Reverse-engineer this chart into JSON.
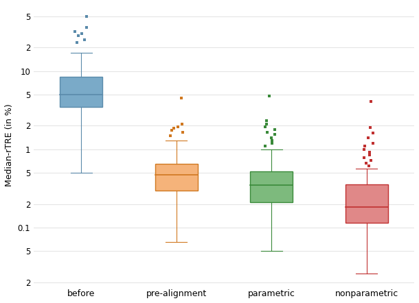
{
  "categories": [
    "before",
    "pre-alignment",
    "parametric",
    "nonparametric"
  ],
  "colors": [
    "#7aaac8",
    "#f5b37a",
    "#7dba7d",
    "#e08888"
  ],
  "edge_colors": [
    "#5a8aaa",
    "#d07820",
    "#3a8a3a",
    "#c03030"
  ],
  "ylabel": "Median-rTRE (in %)",
  "grid_color": "#e5e5e5",
  "box_width": 0.45,
  "boxes": [
    {
      "q1": 3.5,
      "median": 5.0,
      "q3": 8.5,
      "whislo": 0.5,
      "whishi": 17.0,
      "fliers_above": [
        23,
        25,
        28,
        30,
        32,
        36,
        50
      ],
      "fliers_below": []
    },
    {
      "q1": 0.3,
      "median": 0.47,
      "q3": 0.65,
      "whislo": 0.065,
      "whishi": 1.3,
      "fliers_above": [
        1.5,
        1.65,
        1.75,
        1.85,
        1.95,
        2.1,
        4.5
      ],
      "fliers_below": []
    },
    {
      "q1": 0.21,
      "median": 0.35,
      "q3": 0.52,
      "whislo": 0.05,
      "whishi": 1.0,
      "fliers_above": [
        1.1,
        1.2,
        1.3,
        1.4,
        1.55,
        1.65,
        1.8,
        1.95,
        2.1,
        2.3,
        4.8
      ],
      "fliers_below": []
    },
    {
      "q1": 0.115,
      "median": 0.185,
      "q3": 0.36,
      "whislo": 0.026,
      "whishi": 0.57,
      "fliers_above": [
        0.62,
        0.67,
        0.72,
        0.78,
        0.85,
        0.92,
        1.0,
        1.1,
        1.2,
        1.4,
        1.6,
        1.9,
        4.1
      ],
      "fliers_below": []
    }
  ],
  "ylim": [
    0.018,
    70
  ],
  "positions": [
    1,
    2,
    3,
    4
  ],
  "marker_size": 5
}
